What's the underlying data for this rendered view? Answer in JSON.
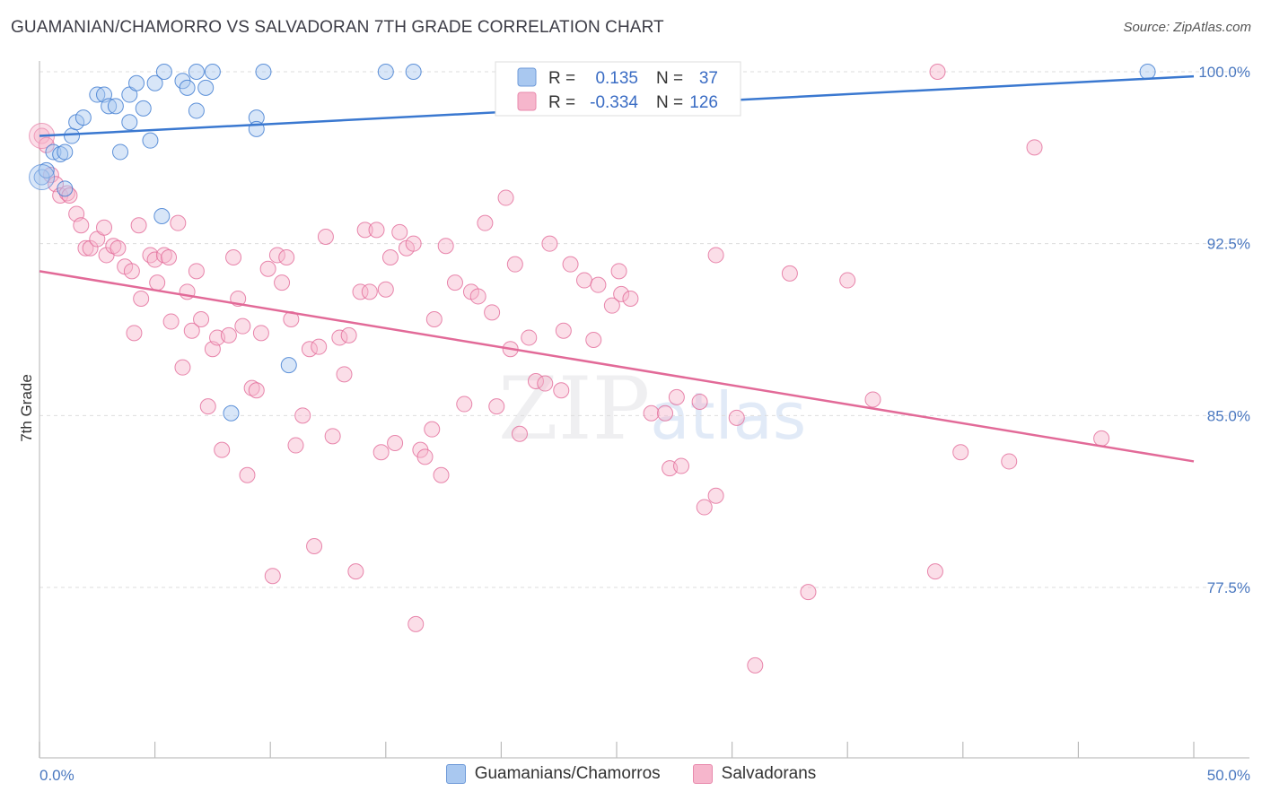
{
  "header": {
    "title": "GUAMANIAN/CHAMORRO VS SALVADORAN 7TH GRADE CORRELATION CHART",
    "source": "Source: ZipAtlas.com"
  },
  "watermark": {
    "zip": "ZIP",
    "atlas": "atlas"
  },
  "legend_box": {
    "rows": [
      {
        "r_label": "R =",
        "r_value": "0.135",
        "n_label": "N =",
        "n_value": "37"
      },
      {
        "r_label": "R =",
        "r_value": "-0.334",
        "n_label": "N =",
        "n_value": "126"
      }
    ]
  },
  "bottom_legend": {
    "items": [
      {
        "label": "Guamanians/Chamorros"
      },
      {
        "label": "Salvadorans"
      }
    ]
  },
  "colors": {
    "blue": "#3a78d0",
    "blue_fill": "#a9c8f0",
    "pink": "#e26a98",
    "pink_fill": "#f6b6cc",
    "grid": "#dddddd",
    "tick_label": "#4a78c0"
  },
  "chart_data": {
    "type": "scatter",
    "title": "GUAMANIAN/CHAMORRO VS SALVADORAN 7TH GRADE CORRELATION CHART",
    "xlabel": "",
    "ylabel": "7th Grade",
    "xlim": [
      0,
      50
    ],
    "ylim": [
      70.5,
      101
    ],
    "x_tick_labels": [
      "0.0%",
      "50.0%"
    ],
    "y_ticks": [
      77.5,
      85.0,
      92.5,
      100.0
    ],
    "y_tick_labels": [
      "77.5%",
      "85.0%",
      "92.5%",
      "100.0%"
    ],
    "series": [
      {
        "name": "Guamanians/Chamorros",
        "r": 0.135,
        "n": 37,
        "trend": {
          "x": [
            0,
            50
          ],
          "y": [
            97.2,
            99.8
          ]
        },
        "points": [
          [
            0.1,
            95.4
          ],
          [
            0.3,
            95.7
          ],
          [
            0.6,
            96.5
          ],
          [
            0.9,
            96.4
          ],
          [
            1.1,
            96.5
          ],
          [
            1.1,
            94.9
          ],
          [
            1.4,
            97.2
          ],
          [
            1.6,
            97.8
          ],
          [
            1.9,
            98.0
          ],
          [
            2.5,
            99.0
          ],
          [
            2.8,
            99.0
          ],
          [
            3.0,
            98.5
          ],
          [
            3.3,
            98.5
          ],
          [
            3.5,
            96.5
          ],
          [
            3.9,
            97.8
          ],
          [
            3.9,
            99.0
          ],
          [
            4.2,
            99.5
          ],
          [
            4.5,
            98.4
          ],
          [
            4.8,
            97.0
          ],
          [
            5.0,
            99.5
          ],
          [
            5.3,
            93.7
          ],
          [
            5.4,
            100.0
          ],
          [
            6.2,
            99.6
          ],
          [
            6.4,
            99.3
          ],
          [
            6.8,
            100.0
          ],
          [
            6.8,
            98.3
          ],
          [
            7.2,
            99.3
          ],
          [
            7.5,
            100.0
          ],
          [
            8.3,
            85.1
          ],
          [
            9.4,
            98.0
          ],
          [
            9.4,
            97.5
          ],
          [
            9.7,
            100.0
          ],
          [
            10.8,
            87.2
          ],
          [
            15.0,
            100.0
          ],
          [
            16.2,
            100.0
          ],
          [
            28.0,
            100.0
          ],
          [
            48.0,
            100.0
          ]
        ]
      },
      {
        "name": "Salvadorans",
        "r": -0.334,
        "n": 126,
        "trend": {
          "x": [
            0,
            50
          ],
          "y": [
            91.3,
            83.0
          ]
        },
        "points": [
          [
            0.1,
            97.2
          ],
          [
            0.3,
            96.8
          ],
          [
            0.5,
            95.5
          ],
          [
            0.7,
            95.1
          ],
          [
            0.9,
            94.6
          ],
          [
            1.2,
            94.7
          ],
          [
            1.3,
            94.6
          ],
          [
            1.6,
            93.8
          ],
          [
            1.8,
            93.3
          ],
          [
            2.0,
            92.3
          ],
          [
            2.2,
            92.3
          ],
          [
            2.5,
            92.7
          ],
          [
            2.8,
            93.2
          ],
          [
            2.9,
            92.0
          ],
          [
            3.2,
            92.4
          ],
          [
            3.4,
            92.3
          ],
          [
            3.7,
            91.5
          ],
          [
            4.0,
            91.3
          ],
          [
            4.1,
            88.6
          ],
          [
            4.3,
            93.3
          ],
          [
            4.4,
            90.1
          ],
          [
            4.8,
            92.0
          ],
          [
            5.0,
            91.8
          ],
          [
            5.1,
            90.8
          ],
          [
            5.4,
            92.0
          ],
          [
            5.6,
            91.9
          ],
          [
            5.7,
            89.1
          ],
          [
            6.0,
            93.4
          ],
          [
            6.2,
            87.1
          ],
          [
            6.4,
            90.4
          ],
          [
            6.6,
            88.7
          ],
          [
            6.8,
            91.3
          ],
          [
            7.0,
            89.2
          ],
          [
            7.3,
            85.4
          ],
          [
            7.5,
            87.9
          ],
          [
            7.7,
            88.4
          ],
          [
            7.9,
            83.5
          ],
          [
            8.2,
            88.5
          ],
          [
            8.4,
            91.9
          ],
          [
            8.6,
            90.1
          ],
          [
            8.8,
            88.9
          ],
          [
            9.0,
            82.4
          ],
          [
            9.2,
            86.2
          ],
          [
            9.4,
            86.1
          ],
          [
            9.6,
            88.6
          ],
          [
            9.9,
            91.4
          ],
          [
            10.1,
            78.0
          ],
          [
            10.3,
            92.0
          ],
          [
            10.5,
            90.8
          ],
          [
            10.7,
            91.9
          ],
          [
            10.9,
            89.2
          ],
          [
            11.1,
            83.7
          ],
          [
            11.4,
            85.0
          ],
          [
            11.7,
            87.9
          ],
          [
            11.9,
            79.3
          ],
          [
            12.1,
            88.0
          ],
          [
            12.4,
            92.8
          ],
          [
            12.7,
            84.1
          ],
          [
            13.0,
            88.4
          ],
          [
            13.2,
            86.8
          ],
          [
            13.4,
            88.5
          ],
          [
            13.7,
            78.2
          ],
          [
            13.9,
            90.4
          ],
          [
            14.1,
            93.1
          ],
          [
            14.3,
            90.4
          ],
          [
            14.6,
            93.1
          ],
          [
            14.8,
            83.4
          ],
          [
            15.0,
            90.5
          ],
          [
            15.2,
            91.9
          ],
          [
            15.4,
            83.8
          ],
          [
            15.6,
            93.0
          ],
          [
            15.9,
            92.3
          ],
          [
            16.2,
            92.5
          ],
          [
            16.3,
            75.9
          ],
          [
            16.5,
            83.5
          ],
          [
            16.7,
            83.2
          ],
          [
            17.0,
            84.4
          ],
          [
            17.1,
            89.2
          ],
          [
            17.4,
            82.4
          ],
          [
            17.6,
            92.4
          ],
          [
            18.0,
            90.8
          ],
          [
            18.4,
            85.5
          ],
          [
            18.7,
            90.4
          ],
          [
            19.0,
            90.2
          ],
          [
            19.3,
            93.4
          ],
          [
            19.6,
            89.5
          ],
          [
            19.8,
            85.4
          ],
          [
            20.2,
            94.5
          ],
          [
            20.4,
            87.9
          ],
          [
            20.6,
            91.6
          ],
          [
            20.8,
            84.2
          ],
          [
            21.2,
            88.4
          ],
          [
            21.5,
            86.5
          ],
          [
            21.9,
            86.4
          ],
          [
            22.1,
            92.5
          ],
          [
            22.6,
            86.1
          ],
          [
            22.7,
            88.7
          ],
          [
            23.0,
            91.6
          ],
          [
            23.6,
            90.9
          ],
          [
            24.0,
            88.3
          ],
          [
            24.2,
            90.7
          ],
          [
            24.8,
            89.8
          ],
          [
            25.1,
            91.3
          ],
          [
            25.2,
            90.3
          ],
          [
            25.6,
            90.1
          ],
          [
            26.5,
            85.1
          ],
          [
            27.1,
            85.1
          ],
          [
            27.3,
            82.7
          ],
          [
            27.6,
            85.8
          ],
          [
            27.8,
            82.8
          ],
          [
            28.6,
            85.6
          ],
          [
            28.8,
            81.0
          ],
          [
            29.3,
            81.5
          ],
          [
            29.3,
            92.0
          ],
          [
            30.2,
            84.9
          ],
          [
            31.0,
            74.1
          ],
          [
            32.5,
            91.2
          ],
          [
            33.3,
            77.3
          ],
          [
            35.0,
            90.9
          ],
          [
            36.1,
            85.7
          ],
          [
            38.8,
            78.2
          ],
          [
            38.9,
            100.0
          ],
          [
            39.9,
            83.4
          ],
          [
            42.0,
            83.0
          ],
          [
            43.1,
            96.7
          ],
          [
            46.0,
            84.0
          ]
        ]
      }
    ]
  }
}
